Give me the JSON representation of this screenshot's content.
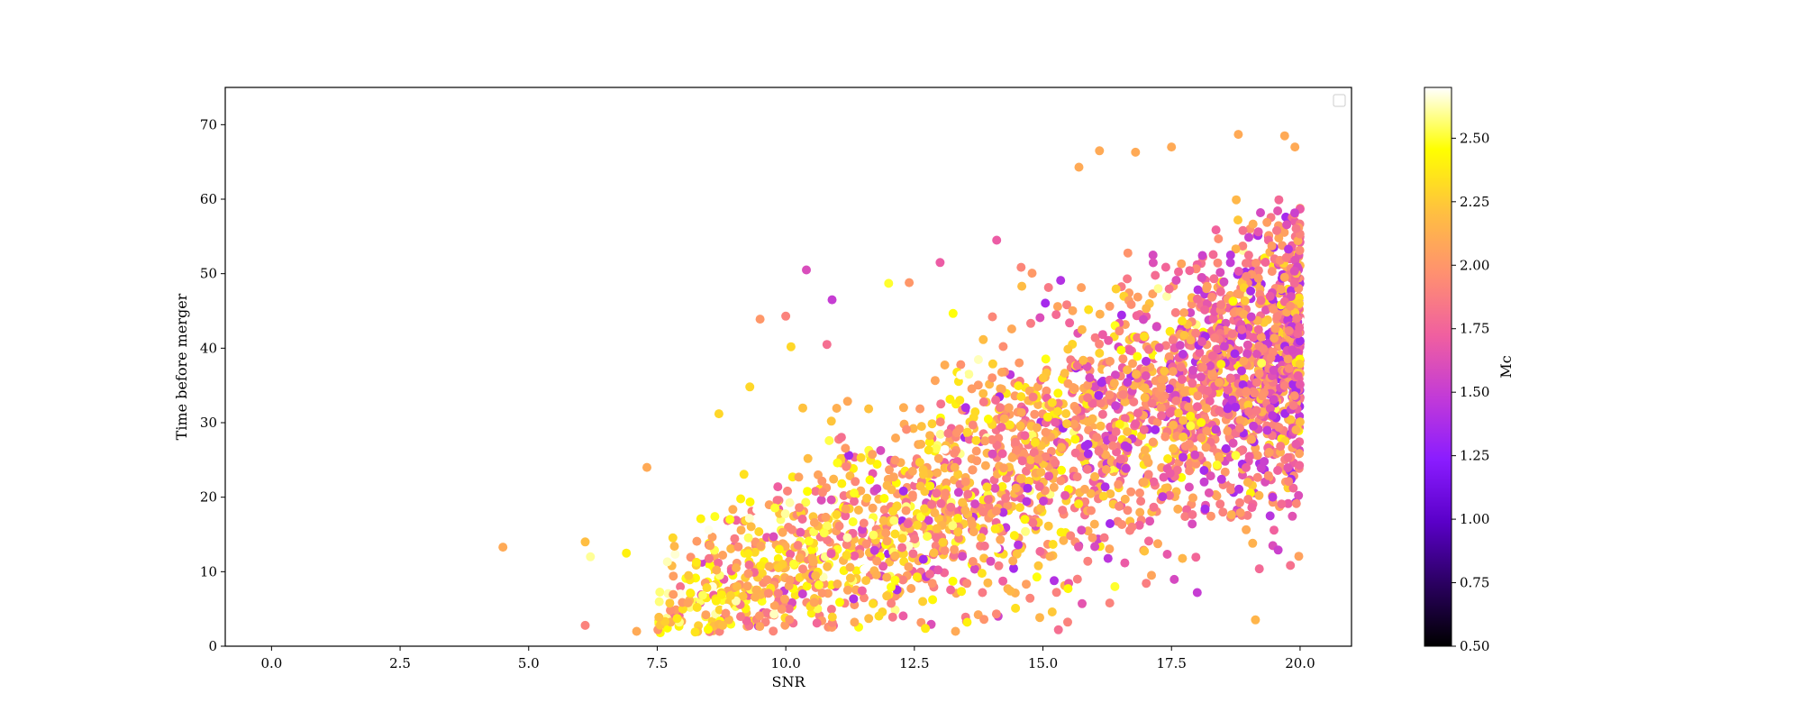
{
  "chart_data": {
    "type": "scatter",
    "title": "",
    "xlabel": "SNR",
    "ylabel": "Time before merger",
    "xlim": [
      -0.9,
      21.0
    ],
    "ylim": [
      0,
      75
    ],
    "x_ticks": [
      0.0,
      2.5,
      5.0,
      7.5,
      10.0,
      12.5,
      15.0,
      17.5,
      20.0
    ],
    "x_tick_labels": [
      "0.0",
      "2.5",
      "5.0",
      "7.5",
      "10.0",
      "12.5",
      "15.0",
      "17.5",
      "20.0"
    ],
    "y_ticks": [
      0,
      10,
      20,
      30,
      40,
      50,
      60,
      70
    ],
    "y_tick_labels": [
      "0",
      "10",
      "20",
      "30",
      "40",
      "50",
      "60",
      "70"
    ],
    "grid": false,
    "legend": {
      "placement": "top-right",
      "entries": []
    },
    "colorbar": {
      "label": "Mc",
      "colormap": "plasma",
      "range": [
        0.5,
        2.7
      ],
      "ticks": [
        0.5,
        0.75,
        1.0,
        1.25,
        1.5,
        1.75,
        2.0,
        2.25,
        2.5
      ],
      "tick_labels": [
        "0.50",
        "0.75",
        "1.00",
        "1.25",
        "1.50",
        "1.75",
        "2.00",
        "2.25",
        "2.50"
      ],
      "stops": [
        "#000000",
        "#2a0060",
        "#5a00c8",
        "#8a1cff",
        "#c23ad8",
        "#f05fa0",
        "#ff9070",
        "#ffc040",
        "#ffff00",
        "#ffffff"
      ]
    },
    "colors": {
      "axis": "#000000",
      "background": "#ffffff"
    },
    "points": [
      {
        "x": 4.5,
        "y": 13.3,
        "c": 2.1
      },
      {
        "x": 6.1,
        "y": 14.0,
        "c": 2.2
      },
      {
        "x": 6.2,
        "y": 12.0,
        "c": 2.6
      },
      {
        "x": 6.1,
        "y": 2.8,
        "c": 1.9
      },
      {
        "x": 6.9,
        "y": 12.5,
        "c": 2.4
      },
      {
        "x": 7.1,
        "y": 2.0,
        "c": 2.1
      },
      {
        "x": 7.3,
        "y": 24.0,
        "c": 2.1
      },
      {
        "x": 8.7,
        "y": 31.2,
        "c": 2.3
      },
      {
        "x": 9.3,
        "y": 34.8,
        "c": 2.3
      },
      {
        "x": 9.5,
        "y": 43.9,
        "c": 2.0
      },
      {
        "x": 10.0,
        "y": 44.3,
        "c": 1.9
      },
      {
        "x": 10.1,
        "y": 40.2,
        "c": 2.3
      },
      {
        "x": 10.4,
        "y": 50.5,
        "c": 1.6
      },
      {
        "x": 10.8,
        "y": 40.5,
        "c": 1.8
      },
      {
        "x": 10.9,
        "y": 46.5,
        "c": 1.5
      },
      {
        "x": 12.0,
        "y": 48.7,
        "c": 2.5
      },
      {
        "x": 12.4,
        "y": 48.8,
        "c": 2.0
      },
      {
        "x": 13.0,
        "y": 51.5,
        "c": 1.7
      },
      {
        "x": 14.1,
        "y": 54.5,
        "c": 1.7
      },
      {
        "x": 15.3,
        "y": 2.2,
        "c": 1.8
      },
      {
        "x": 15.7,
        "y": 64.3,
        "c": 2.1
      },
      {
        "x": 16.1,
        "y": 66.5,
        "c": 2.1
      },
      {
        "x": 16.4,
        "y": 8.0,
        "c": 2.5
      },
      {
        "x": 16.8,
        "y": 66.3,
        "c": 2.1
      },
      {
        "x": 17.5,
        "y": 67.0,
        "c": 2.1
      },
      {
        "x": 18.0,
        "y": 7.2,
        "c": 1.5
      },
      {
        "x": 18.8,
        "y": 68.7,
        "c": 2.1
      },
      {
        "x": 19.7,
        "y": 68.5,
        "c": 2.1
      },
      {
        "x": 19.9,
        "y": 67.0,
        "c": 2.1
      },
      {
        "x": 16.3,
        "y": 5.8,
        "c": 1.9
      },
      {
        "x": 13.3,
        "y": 2.0,
        "c": 2.1
      },
      {
        "x": 18.5,
        "y": 18.0,
        "c": 1.9
      }
    ]
  }
}
